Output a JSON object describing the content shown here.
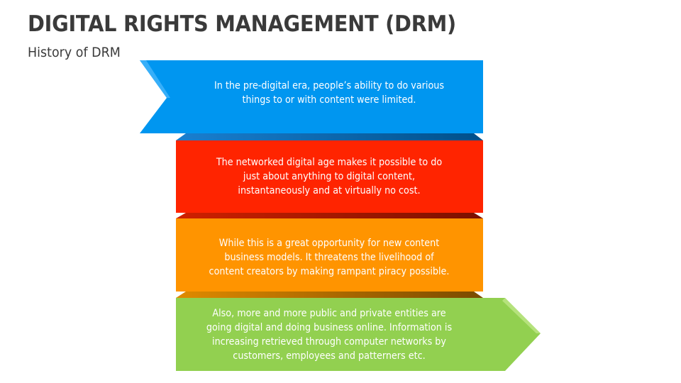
{
  "header": {
    "title": "DIGITAL RIGHTS MANAGEMENT (DRM)",
    "subtitle": "History of DRM"
  },
  "colors": {
    "blue": "#0096f0",
    "red": "#ff2400",
    "orange": "#ff9400",
    "green": "#92d050"
  },
  "steps": [
    {
      "lines": [
        "In the pre-digital era, people’s ability to do various",
        "things to or with content were limited."
      ]
    },
    {
      "lines": [
        "The networked digital age makes it possible to do",
        "just about anything to digital content,",
        "instantaneously and at virtually no cost."
      ]
    },
    {
      "lines": [
        "While this is a great opportunity for new content",
        "business models. It threatens the livelihood of",
        "content creators by making rampant piracy possible."
      ]
    },
    {
      "lines": [
        "Also, more and more public and private entities are",
        "going digital and doing business online. Information is",
        "increasing retrieved through computer networks by",
        "customers, employees and patterners etc."
      ]
    }
  ]
}
